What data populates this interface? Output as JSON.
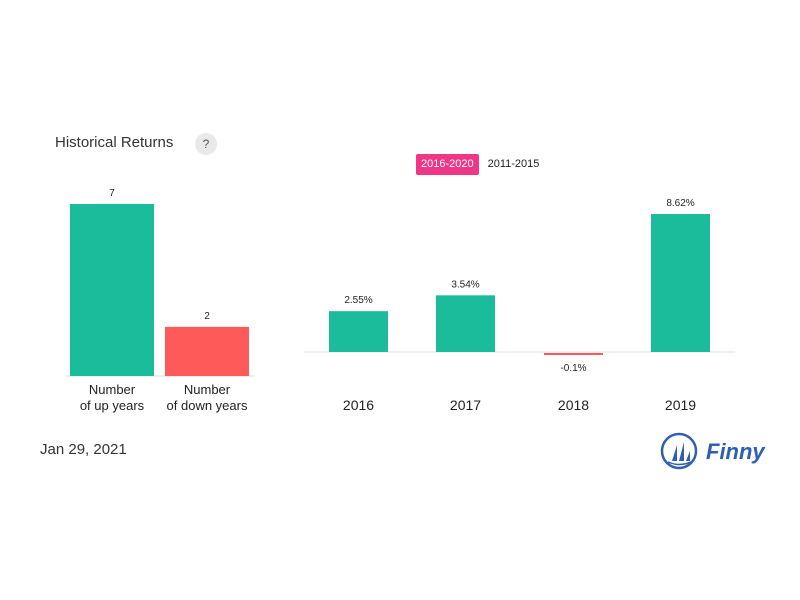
{
  "header": {
    "title": "Historical Returns",
    "help_label": "?"
  },
  "tabs": [
    {
      "label": "2016-2020",
      "active": true
    },
    {
      "label": "2011-2015",
      "active": false
    }
  ],
  "footer": {
    "date": "Jan 29, 2021",
    "brand": "Finny"
  },
  "colors": {
    "positive": "#1abc9c",
    "negative": "#ff5a5a",
    "accent": "#f03787",
    "brand": "#2f5fb3"
  },
  "chart_data": [
    {
      "type": "bar",
      "categories": [
        [
          "Number",
          "of up years"
        ],
        [
          "Number",
          "of down years"
        ]
      ],
      "values": [
        7,
        2
      ],
      "data_labels": [
        "7",
        "2"
      ],
      "ylim": [
        0,
        7
      ]
    },
    {
      "type": "bar",
      "categories": [
        "2016",
        "2017",
        "2018",
        "2019"
      ],
      "values": [
        2.55,
        3.54,
        -0.1,
        8.62
      ],
      "data_labels": [
        "2.55%",
        "3.54%",
        "-0.1%",
        "8.62%"
      ],
      "unit": "%",
      "ylim": [
        -0.1,
        8.62
      ]
    }
  ]
}
